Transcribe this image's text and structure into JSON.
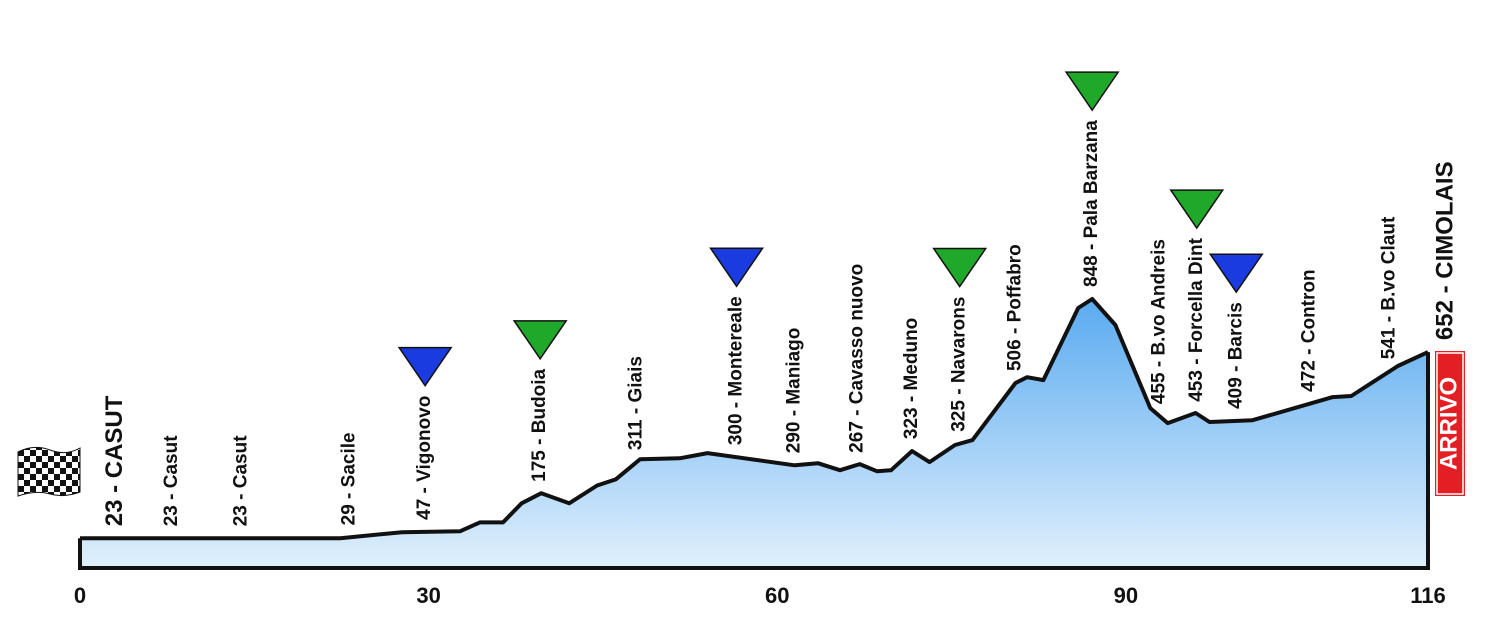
{
  "chart_data": {
    "type": "area",
    "x": [
      0,
      22.4,
      27.7,
      32.7,
      34.4,
      36.4,
      38.0,
      39.7,
      42.1,
      44.5,
      46.1,
      48.2,
      51.6,
      54.0,
      61.5,
      63.5,
      65.4,
      67.1,
      68.6,
      69.8,
      71.6,
      73.1,
      75.3,
      76.8,
      80.5,
      81.5,
      82.9,
      85.9,
      87.1,
      89.1,
      92.1,
      93.6,
      96.0,
      97.2,
      100.9,
      107.8,
      109.4,
      113.4,
      116
    ],
    "values": [
      23,
      23,
      44,
      47,
      78,
      78,
      144,
      179,
      144,
      206,
      227,
      297,
      300,
      318,
      276,
      283,
      259,
      280,
      255,
      259,
      325,
      287,
      346,
      363,
      561,
      581,
      571,
      821,
      852,
      762,
      474,
      422,
      457,
      426,
      432,
      512,
      516,
      620,
      668
    ],
    "color": "#5aaaf0",
    "xlim": [
      0,
      116
    ],
    "xticks": [
      0,
      30,
      60,
      90,
      116
    ],
    "ylim": [
      -80,
      1888
    ],
    "places": [
      {
        "label": "23 - CASUT",
        "km": 1.5
      },
      {
        "label": "23 - Casut",
        "km": 7.9
      },
      {
        "label": "23 - Casut",
        "km": 13.9
      },
      {
        "label": "29 - Sacile",
        "km": 23.2
      },
      {
        "label": "47 - Vigonovo",
        "km": 29.7,
        "marker": "#1a3be0"
      },
      {
        "label": "175 - Budoia",
        "km": 39.6,
        "marker": "#1fa82a"
      },
      {
        "label": "311 - Giais",
        "km": 47.9
      },
      {
        "label": "300 - Montereale",
        "km": 56.5,
        "marker": "#1a3be0"
      },
      {
        "label": "290 - Maniago",
        "km": 61.5
      },
      {
        "label": "267 - Cavasso nuovo",
        "km": 66.9
      },
      {
        "label": "323 - Meduno",
        "km": 71.6
      },
      {
        "label": "325 - Navarons",
        "km": 75.7,
        "marker": "#1fa82a"
      },
      {
        "label": "506 - Poffabro",
        "km": 80.5
      },
      {
        "label": "848 - Pala Barzana",
        "km": 87.1,
        "marker": "#1fa82a"
      },
      {
        "label": "455 - B.vo Andreis",
        "km": 92.9
      },
      {
        "label": "453 - Forcella Dint",
        "km": 96.1,
        "marker": "#1fa82a"
      },
      {
        "label": "409 - Barcis",
        "km": 99.5,
        "marker": "#1a3be0"
      },
      {
        "label": "472 - Contron",
        "km": 105.8
      },
      {
        "label": "541 - B.vo Claut",
        "km": 112.7
      },
      {
        "label": "652 - CIMOLAIS",
        "km": 116
      }
    ],
    "finish_label": "ARRIVO"
  }
}
